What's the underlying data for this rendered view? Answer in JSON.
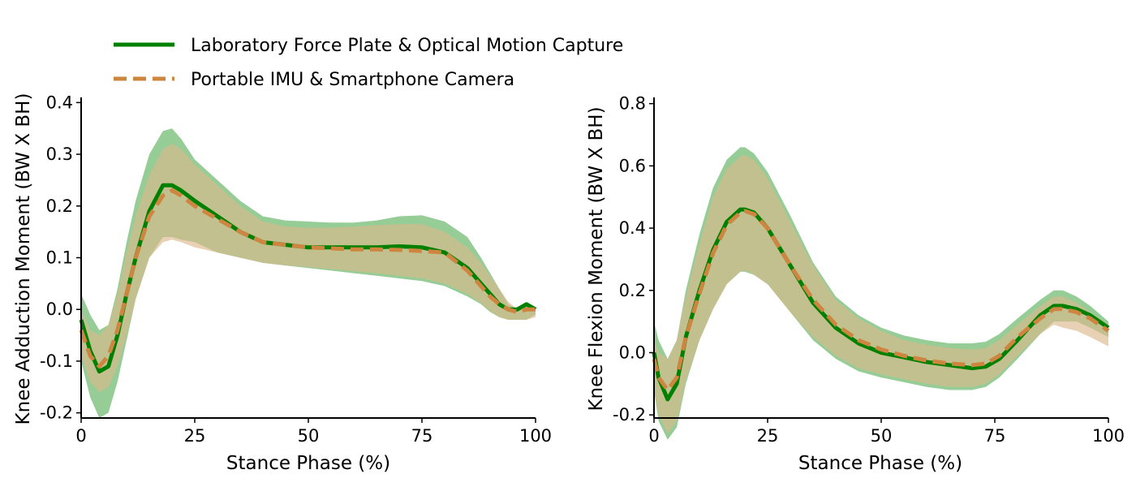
{
  "legend": {
    "entries": [
      {
        "label": "Laboratory Force Plate & Optical Motion Capture",
        "color": "#008000",
        "style": "solid"
      },
      {
        "label": "Portable IMU & Smartphone Camera",
        "color": "#cd853f",
        "style": "dashed"
      }
    ],
    "placement": "top-left"
  },
  "colors": {
    "lab_line": "#008000",
    "lab_band": "#7cc17c",
    "imu_line": "#cd853f",
    "imu_band": "#dcb88e"
  },
  "chart_data": [
    {
      "type": "line",
      "xlabel": "Stance Phase (%)",
      "ylabel": "Knee Adduction Moment (BW X BH)",
      "xlim": [
        0,
        100
      ],
      "ylim": [
        -0.21,
        0.41
      ],
      "xticks": [
        0,
        25,
        50,
        75,
        100
      ],
      "yticks": [
        -0.2,
        -0.1,
        0.0,
        0.1,
        0.2,
        0.3,
        0.4
      ],
      "ytick_labels": [
        "-0.2",
        "-0.1",
        "0.0",
        "0.1",
        "0.2",
        "0.3",
        "0.4"
      ],
      "grid": false,
      "series": [
        {
          "name": "Laboratory Force Plate & Optical Motion Capture",
          "style": "solid",
          "x": [
            0,
            2,
            4,
            6,
            8,
            10,
            12,
            15,
            18,
            20,
            22,
            25,
            30,
            35,
            40,
            45,
            50,
            55,
            60,
            65,
            70,
            75,
            80,
            85,
            88,
            90,
            92,
            94,
            96,
            98,
            100
          ],
          "mean": [
            -0.02,
            -0.08,
            -0.12,
            -0.11,
            -0.05,
            0.03,
            0.1,
            0.19,
            0.24,
            0.24,
            0.23,
            0.21,
            0.18,
            0.15,
            0.13,
            0.125,
            0.12,
            0.12,
            0.12,
            0.12,
            0.122,
            0.12,
            0.11,
            0.08,
            0.05,
            0.03,
            0.01,
            0.0,
            0.0,
            0.01,
            0.0
          ],
          "upper": [
            0.03,
            -0.01,
            -0.04,
            -0.03,
            0.04,
            0.13,
            0.21,
            0.3,
            0.345,
            0.35,
            0.33,
            0.29,
            0.25,
            0.21,
            0.18,
            0.172,
            0.17,
            0.168,
            0.168,
            0.172,
            0.18,
            0.182,
            0.17,
            0.14,
            0.1,
            0.07,
            0.04,
            0.01,
            0.0,
            0.01,
            0.0
          ],
          "lower": [
            -0.1,
            -0.17,
            -0.21,
            -0.2,
            -0.14,
            -0.06,
            0.02,
            0.1,
            0.14,
            0.14,
            0.135,
            0.13,
            0.11,
            0.1,
            0.09,
            0.085,
            0.08,
            0.075,
            0.07,
            0.065,
            0.06,
            0.055,
            0.045,
            0.025,
            0.01,
            -0.005,
            -0.015,
            -0.02,
            -0.02,
            -0.02,
            -0.01
          ]
        },
        {
          "name": "Portable IMU & Smartphone Camera",
          "style": "dashed",
          "x": [
            0,
            2,
            4,
            6,
            8,
            10,
            12,
            15,
            18,
            20,
            22,
            25,
            30,
            35,
            40,
            45,
            50,
            55,
            60,
            65,
            70,
            75,
            80,
            85,
            88,
            90,
            92,
            94,
            96,
            98,
            100
          ],
          "mean": [
            -0.04,
            -0.09,
            -0.11,
            -0.09,
            -0.04,
            0.03,
            0.1,
            0.18,
            0.22,
            0.23,
            0.22,
            0.2,
            0.175,
            0.15,
            0.13,
            0.125,
            0.12,
            0.118,
            0.116,
            0.116,
            0.115,
            0.113,
            0.11,
            0.075,
            0.045,
            0.025,
            0.01,
            0.0,
            -0.005,
            0.0,
            0.0
          ],
          "upper": [
            0.0,
            -0.04,
            -0.05,
            -0.03,
            0.03,
            0.11,
            0.18,
            0.26,
            0.31,
            0.32,
            0.31,
            0.28,
            0.24,
            0.2,
            0.17,
            0.16,
            0.158,
            0.158,
            0.16,
            0.163,
            0.165,
            0.165,
            0.15,
            0.12,
            0.09,
            0.065,
            0.04,
            0.015,
            0.0,
            0.005,
            0.005
          ],
          "lower": [
            -0.09,
            -0.14,
            -0.16,
            -0.15,
            -0.11,
            -0.05,
            0.02,
            0.1,
            0.13,
            0.135,
            0.13,
            0.12,
            0.11,
            0.1,
            0.09,
            0.085,
            0.082,
            0.078,
            0.074,
            0.07,
            0.065,
            0.06,
            0.05,
            0.03,
            0.012,
            -0.003,
            -0.015,
            -0.02,
            -0.02,
            -0.02,
            -0.015
          ]
        }
      ]
    },
    {
      "type": "line",
      "xlabel": "Stance Phase (%)",
      "ylabel": "Knee Flexion Moment (BW X BH)",
      "xlim": [
        0,
        100
      ],
      "ylim": [
        -0.21,
        0.82
      ],
      "xticks": [
        0,
        25,
        50,
        75,
        100
      ],
      "yticks": [
        -0.2,
        0.0,
        0.2,
        0.4,
        0.6,
        0.8
      ],
      "ytick_labels": [
        "-0.2",
        "0.0",
        "0.2",
        "0.4",
        "0.6",
        "0.8"
      ],
      "grid": false,
      "series": [
        {
          "name": "Laboratory Force Plate & Optical Motion Capture",
          "style": "solid",
          "x": [
            0,
            1,
            3,
            5,
            7,
            10,
            13,
            16,
            19,
            20,
            22,
            25,
            30,
            35,
            40,
            45,
            50,
            55,
            60,
            65,
            70,
            73,
            76,
            80,
            85,
            88,
            90,
            93,
            96,
            100
          ],
          "mean": [
            0.0,
            -0.08,
            -0.15,
            -0.1,
            0.05,
            0.2,
            0.33,
            0.42,
            0.46,
            0.46,
            0.45,
            0.4,
            0.28,
            0.16,
            0.08,
            0.03,
            0.0,
            -0.015,
            -0.03,
            -0.04,
            -0.05,
            -0.045,
            -0.02,
            0.04,
            0.12,
            0.15,
            0.15,
            0.14,
            0.12,
            0.08
          ],
          "upper": [
            0.1,
            0.04,
            -0.02,
            0.04,
            0.2,
            0.38,
            0.53,
            0.62,
            0.66,
            0.66,
            0.64,
            0.58,
            0.44,
            0.29,
            0.18,
            0.12,
            0.08,
            0.055,
            0.04,
            0.03,
            0.03,
            0.035,
            0.06,
            0.11,
            0.17,
            0.2,
            0.2,
            0.18,
            0.15,
            0.1
          ],
          "lower": [
            -0.12,
            -0.22,
            -0.28,
            -0.24,
            -0.1,
            0.04,
            0.14,
            0.22,
            0.26,
            0.26,
            0.25,
            0.22,
            0.13,
            0.04,
            -0.02,
            -0.06,
            -0.08,
            -0.095,
            -0.11,
            -0.12,
            -0.12,
            -0.11,
            -0.08,
            -0.02,
            0.06,
            0.1,
            0.1,
            0.1,
            0.08,
            0.05
          ]
        },
        {
          "name": "Portable IMU & Smartphone Camera",
          "style": "dashed",
          "x": [
            0,
            1,
            3,
            5,
            7,
            10,
            13,
            16,
            19,
            20,
            22,
            25,
            30,
            35,
            40,
            45,
            50,
            55,
            60,
            65,
            70,
            73,
            76,
            80,
            85,
            88,
            90,
            93,
            96,
            100
          ],
          "mean": [
            -0.02,
            -0.08,
            -0.12,
            -0.08,
            0.05,
            0.19,
            0.32,
            0.41,
            0.45,
            0.455,
            0.445,
            0.4,
            0.28,
            0.17,
            0.09,
            0.04,
            0.01,
            -0.01,
            -0.025,
            -0.035,
            -0.04,
            -0.035,
            -0.01,
            0.05,
            0.11,
            0.14,
            0.14,
            0.13,
            0.11,
            0.07
          ],
          "upper": [
            0.05,
            0.0,
            -0.02,
            0.04,
            0.18,
            0.35,
            0.5,
            0.59,
            0.63,
            0.635,
            0.62,
            0.56,
            0.42,
            0.28,
            0.17,
            0.11,
            0.07,
            0.04,
            0.025,
            0.015,
            0.01,
            0.015,
            0.04,
            0.09,
            0.15,
            0.18,
            0.18,
            0.16,
            0.13,
            0.09
          ],
          "lower": [
            -0.12,
            -0.2,
            -0.26,
            -0.22,
            -0.09,
            0.04,
            0.14,
            0.22,
            0.26,
            0.265,
            0.25,
            0.22,
            0.13,
            0.05,
            -0.01,
            -0.05,
            -0.07,
            -0.085,
            -0.1,
            -0.11,
            -0.11,
            -0.1,
            -0.07,
            -0.01,
            0.06,
            0.09,
            0.08,
            0.07,
            0.05,
            0.02
          ]
        }
      ]
    }
  ]
}
